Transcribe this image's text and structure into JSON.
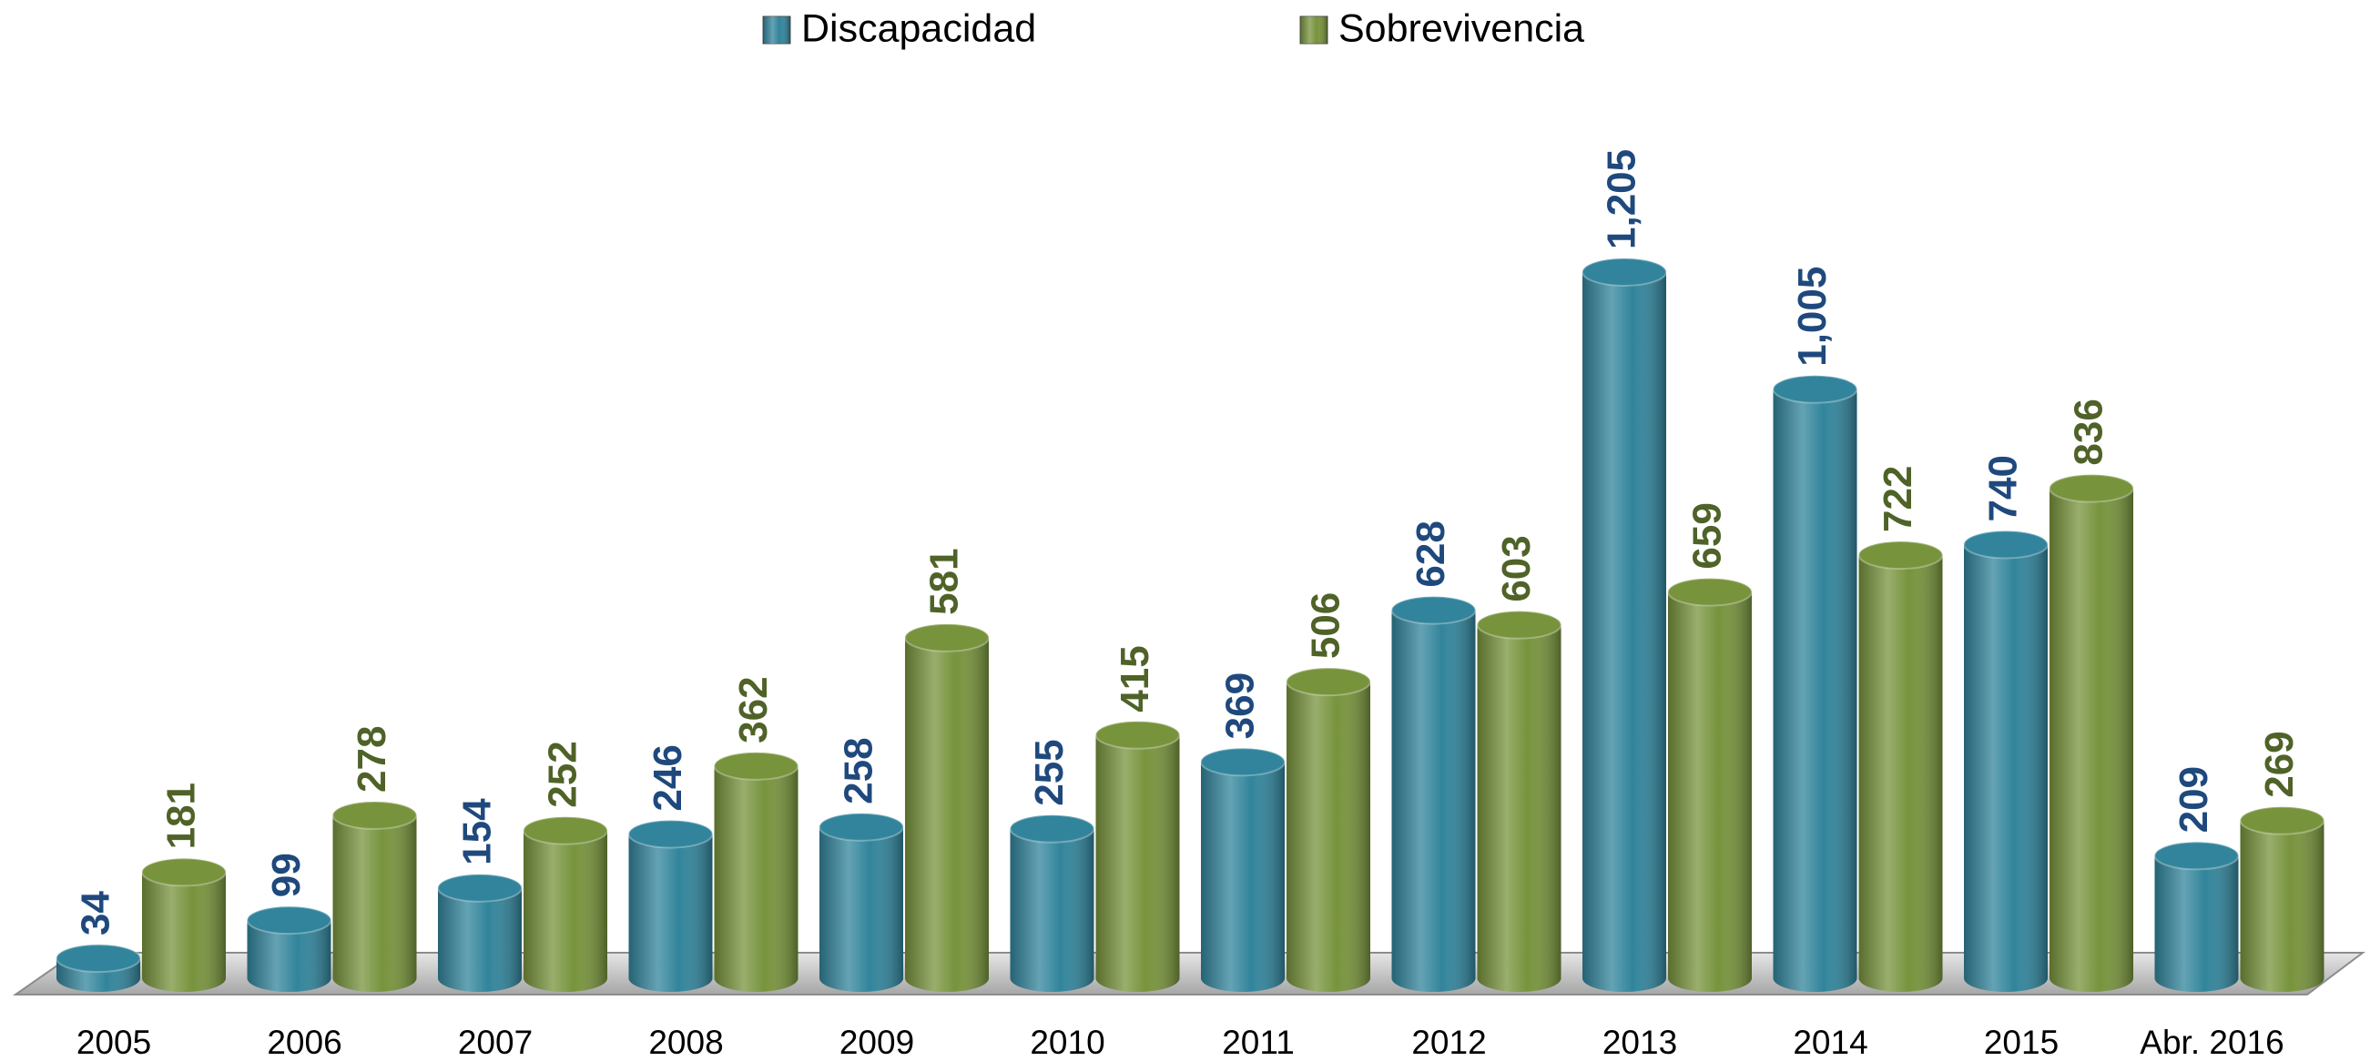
{
  "chart_data": {
    "type": "bar",
    "categories": [
      "2005",
      "2006",
      "2007",
      "2008",
      "2009",
      "2010",
      "2011",
      "2012",
      "2013",
      "2014",
      "2015",
      "Abr. 2016"
    ],
    "series": [
      {
        "name": "Discapacidad",
        "color": "#31849b",
        "label_color": "#1f497d",
        "values": [
          34,
          99,
          154,
          246,
          258,
          255,
          369,
          628,
          1205,
          1005,
          740,
          209
        ],
        "value_labels": [
          "34",
          "99",
          "154",
          "246",
          "258",
          "255",
          "369",
          "628",
          "1,205",
          "1,005",
          "740",
          "209"
        ]
      },
      {
        "name": "Sobrevivencia",
        "color": "#77933c",
        "label_color": "#4f6228",
        "values": [
          181,
          278,
          252,
          362,
          581,
          415,
          506,
          603,
          659,
          722,
          836,
          269
        ],
        "value_labels": [
          "181",
          "278",
          "252",
          "362",
          "581",
          "415",
          "506",
          "603",
          "659",
          "722",
          "836",
          "269"
        ]
      }
    ],
    "legend": "top"
  }
}
